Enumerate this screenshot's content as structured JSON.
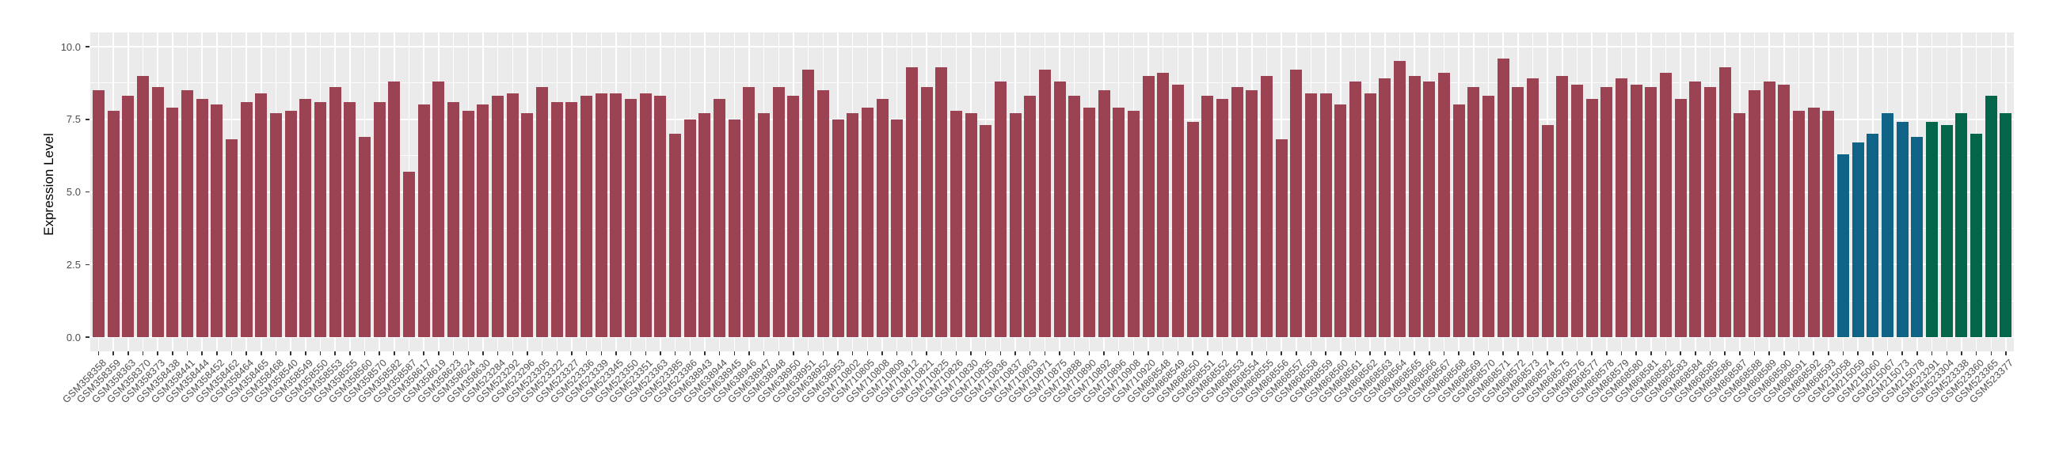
{
  "chart_data": {
    "type": "bar",
    "title": "",
    "xlabel": "",
    "ylabel": "Expression Level",
    "ylim": [
      0,
      10
    ],
    "yticks": [
      0,
      2.5,
      5,
      7.5,
      10
    ],
    "ytick_labels": [
      "0.0",
      "2.5",
      "5.0",
      "7.5",
      "10.0"
    ],
    "grid": true,
    "legend_position": "none",
    "panel_background": "#EBEBEB",
    "grid_color": "#FFFFFF",
    "tick_color": "#333333",
    "axis_text_color": "#4D4D4D",
    "group_colors": [
      "#9C4353",
      "#0E6387",
      "#03654A"
    ],
    "categories": [
      "GSM358358",
      "GSM358359",
      "GSM358363",
      "GSM358370",
      "GSM358373",
      "GSM358438",
      "GSM358441",
      "GSM358444",
      "GSM358452",
      "GSM358462",
      "GSM358464",
      "GSM358465",
      "GSM358468",
      "GSM358540",
      "GSM358549",
      "GSM358550",
      "GSM358553",
      "GSM358555",
      "GSM358560",
      "GSM358570",
      "GSM358582",
      "GSM358587",
      "GSM358617",
      "GSM358619",
      "GSM358623",
      "GSM358624",
      "GSM358630",
      "GSM523284",
      "GSM523292",
      "GSM523296",
      "GSM523305",
      "GSM523322",
      "GSM523327",
      "GSM523336",
      "GSM523339",
      "GSM523345",
      "GSM523350",
      "GSM523351",
      "GSM523363",
      "GSM523385",
      "GSM523386",
      "GSM638943",
      "GSM638944",
      "GSM638945",
      "GSM638946",
      "GSM638947",
      "GSM638948",
      "GSM638950",
      "GSM638951",
      "GSM638952",
      "GSM638953",
      "GSM710802",
      "GSM710805",
      "GSM710808",
      "GSM710809",
      "GSM710812",
      "GSM710821",
      "GSM710825",
      "GSM710826",
      "GSM710830",
      "GSM710835",
      "GSM710836",
      "GSM710837",
      "GSM710863",
      "GSM710871",
      "GSM710875",
      "GSM710888",
      "GSM710890",
      "GSM710892",
      "GSM710896",
      "GSM710908",
      "GSM710920",
      "GSM868548",
      "GSM868549",
      "GSM868550",
      "GSM868551",
      "GSM868552",
      "GSM868553",
      "GSM868554",
      "GSM868555",
      "GSM868556",
      "GSM868557",
      "GSM868558",
      "GSM868559",
      "GSM868560",
      "GSM868561",
      "GSM868562",
      "GSM868563",
      "GSM868564",
      "GSM868565",
      "GSM868566",
      "GSM868567",
      "GSM868568",
      "GSM868569",
      "GSM868570",
      "GSM868571",
      "GSM868572",
      "GSM868573",
      "GSM868574",
      "GSM868575",
      "GSM868576",
      "GSM868577",
      "GSM868578",
      "GSM868579",
      "GSM868580",
      "GSM868581",
      "GSM868582",
      "GSM868583",
      "GSM868584",
      "GSM868585",
      "GSM868586",
      "GSM868587",
      "GSM868588",
      "GSM868589",
      "GSM868590",
      "GSM868591",
      "GSM868592",
      "GSM868593",
      "GSM215058",
      "GSM215059",
      "GSM215060",
      "GSM215067",
      "GSM215073",
      "GSM215078",
      "GSM523291",
      "GSM523304",
      "GSM523338",
      "GSM523360",
      "GSM523365",
      "GSM523377"
    ],
    "values": [
      8.5,
      7.8,
      8.3,
      9.0,
      8.6,
      7.9,
      8.5,
      8.2,
      8.0,
      6.8,
      8.1,
      8.4,
      7.7,
      7.8,
      8.2,
      8.1,
      8.6,
      8.1,
      6.9,
      8.1,
      8.8,
      5.7,
      8.0,
      8.8,
      8.1,
      7.8,
      8.0,
      8.3,
      8.4,
      7.7,
      8.6,
      8.1,
      8.1,
      8.3,
      8.4,
      8.4,
      8.2,
      8.4,
      8.3,
      7.0,
      7.5,
      7.7,
      8.2,
      7.5,
      8.6,
      7.7,
      8.6,
      8.3,
      9.2,
      8.5,
      7.5,
      7.7,
      7.9,
      8.2,
      7.5,
      9.3,
      8.6,
      9.3,
      7.8,
      7.7,
      7.3,
      8.8,
      7.7,
      8.3,
      9.2,
      8.8,
      8.3,
      7.9,
      8.5,
      7.9,
      7.8,
      9.0,
      9.1,
      8.7,
      7.4,
      8.3,
      8.2,
      8.6,
      8.5,
      9.0,
      6.8,
      9.2,
      8.4,
      8.4,
      8.0,
      8.8,
      8.4,
      8.9,
      9.5,
      9.0,
      8.8,
      9.1,
      8.0,
      8.6,
      8.3,
      9.6,
      8.6,
      8.9,
      7.3,
      9.0,
      8.7,
      8.2,
      8.6,
      8.9,
      8.7,
      8.6,
      9.1,
      8.2,
      8.8,
      8.6,
      9.3,
      7.7,
      8.5,
      8.8,
      8.7,
      7.8,
      7.9,
      7.8,
      6.3,
      6.7,
      7.0,
      7.7,
      7.4,
      6.9,
      7.4,
      7.3,
      7.7,
      7.0,
      8.3,
      7.7
    ],
    "group_index": [
      0,
      0,
      0,
      0,
      0,
      0,
      0,
      0,
      0,
      0,
      0,
      0,
      0,
      0,
      0,
      0,
      0,
      0,
      0,
      0,
      0,
      0,
      0,
      0,
      0,
      0,
      0,
      0,
      0,
      0,
      0,
      0,
      0,
      0,
      0,
      0,
      0,
      0,
      0,
      0,
      0,
      0,
      0,
      0,
      0,
      0,
      0,
      0,
      0,
      0,
      0,
      0,
      0,
      0,
      0,
      0,
      0,
      0,
      0,
      0,
      0,
      0,
      0,
      0,
      0,
      0,
      0,
      0,
      0,
      0,
      0,
      0,
      0,
      0,
      0,
      0,
      0,
      0,
      0,
      0,
      0,
      0,
      0,
      0,
      0,
      0,
      0,
      0,
      0,
      0,
      0,
      0,
      0,
      0,
      0,
      0,
      0,
      0,
      0,
      0,
      0,
      0,
      0,
      0,
      0,
      0,
      0,
      0,
      0,
      0,
      0,
      0,
      0,
      0,
      0,
      0,
      0,
      0,
      1,
      1,
      1,
      1,
      1,
      1,
      2,
      2,
      2,
      2,
      2,
      2
    ]
  }
}
